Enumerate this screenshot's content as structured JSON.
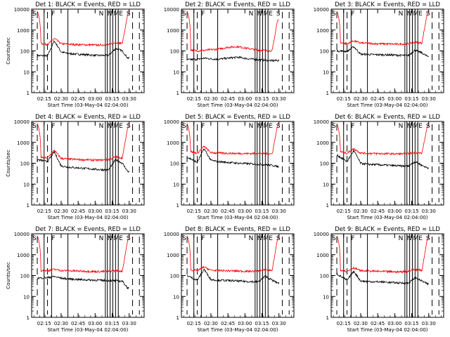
{
  "figure": {
    "ylabel": "Counts/sec",
    "xlabel": "Start Time (03-May-04 02:04:00)",
    "ytick_labels": [
      "1",
      "10",
      "100",
      "1000",
      "10000"
    ],
    "xtick_labels": [
      "02:15",
      "02:30",
      "02:45",
      "03:00",
      "03:15",
      "03:30"
    ],
    "marker_labels": [
      {
        "text": "S",
        "x": 2.067
      },
      {
        "text": "F",
        "x": 2.35
      },
      {
        "text": "N",
        "x": 3.045
      },
      {
        "text": "N",
        "x": 3.17
      },
      {
        "text": "ME",
        "x": 3.26
      },
      {
        "text": "S",
        "x": 3.45
      }
    ],
    "colors": {
      "events": "#000000",
      "lld": "#ff0000",
      "frame": "#000000"
    }
  },
  "chart_data": [
    {
      "type": "line",
      "title": "Det 1: BLACK = Events, RED = LLD",
      "xlim": [
        2.067,
        3.72
      ],
      "ylim": [
        1,
        10000
      ],
      "yscale": "log",
      "x": [
        2.15,
        2.3,
        2.4,
        2.5,
        2.6,
        2.75,
        2.9,
        3.05,
        3.2,
        3.3,
        3.4,
        3.48
      ],
      "series": [
        {
          "name": "Events",
          "color": "#000000",
          "values": [
            60,
            58,
            300,
            90,
            75,
            70,
            65,
            60,
            62,
            130,
            100,
            45
          ]
        },
        {
          "name": "LLD",
          "color": "#ff0000",
          "values": [
            250,
            200,
            400,
            220,
            210,
            200,
            195,
            190,
            200,
            250,
            230,
            6000
          ]
        }
      ]
    },
    {
      "type": "line",
      "title": "Det 2: BLACK = Events, RED = LLD",
      "xlim": [
        2.067,
        3.72
      ],
      "ylim": [
        1,
        10000
      ],
      "yscale": "log",
      "x": [
        2.15,
        2.3,
        2.4,
        2.5,
        2.6,
        2.75,
        2.9,
        3.05,
        3.2,
        3.3,
        3.4,
        3.48
      ],
      "series": [
        {
          "name": "Events",
          "color": "#000000",
          "values": [
            38,
            40,
            45,
            42,
            40,
            45,
            50,
            42,
            38,
            36,
            34,
            35
          ]
        },
        {
          "name": "LLD",
          "color": "#ff0000",
          "values": [
            120,
            100,
            105,
            115,
            120,
            150,
            160,
            130,
            110,
            105,
            100,
            3000
          ]
        }
      ]
    },
    {
      "type": "line",
      "title": "Det 3: BLACK = Events, RED = LLD",
      "xlim": [
        2.067,
        3.72
      ],
      "ylim": [
        1,
        10000
      ],
      "yscale": "log",
      "x": [
        2.15,
        2.3,
        2.4,
        2.5,
        2.6,
        2.75,
        2.9,
        3.05,
        3.2,
        3.3,
        3.4,
        3.48
      ],
      "series": [
        {
          "name": "Events",
          "color": "#000000",
          "values": [
            100,
            95,
            160,
            70,
            68,
            66,
            65,
            62,
            60,
            110,
            80,
            55
          ]
        },
        {
          "name": "LLD",
          "color": "#ff0000",
          "values": [
            260,
            220,
            300,
            240,
            230,
            220,
            215,
            210,
            220,
            260,
            240,
            6500
          ]
        }
      ]
    },
    {
      "type": "line",
      "title": "Det 4: BLACK = Events, RED = LLD",
      "xlim": [
        2.067,
        3.72
      ],
      "ylim": [
        1,
        10000
      ],
      "yscale": "log",
      "x": [
        2.15,
        2.3,
        2.4,
        2.5,
        2.6,
        2.75,
        2.9,
        3.05,
        3.2,
        3.3,
        3.4,
        3.48
      ],
      "series": [
        {
          "name": "Events",
          "color": "#000000",
          "values": [
            150,
            120,
            350,
            75,
            65,
            60,
            55,
            50,
            48,
            150,
            100,
            40
          ]
        },
        {
          "name": "LLD",
          "color": "#ff0000",
          "values": [
            200,
            180,
            420,
            170,
            160,
            150,
            145,
            140,
            150,
            200,
            180,
            5500
          ]
        }
      ]
    },
    {
      "type": "line",
      "title": "Det 5: BLACK = Events, RED = LLD",
      "xlim": [
        2.067,
        3.72
      ],
      "ylim": [
        1,
        10000
      ],
      "yscale": "log",
      "x": [
        2.15,
        2.3,
        2.4,
        2.5,
        2.6,
        2.75,
        2.9,
        3.05,
        3.2,
        3.3,
        3.4,
        3.48
      ],
      "series": [
        {
          "name": "Events",
          "color": "#000000",
          "values": [
            200,
            110,
            500,
            140,
            120,
            110,
            100,
            95,
            90,
            85,
            80,
            70
          ]
        },
        {
          "name": "LLD",
          "color": "#ff0000",
          "values": [
            400,
            300,
            650,
            320,
            310,
            300,
            295,
            290,
            300,
            290,
            280,
            6500
          ]
        }
      ]
    },
    {
      "type": "line",
      "title": "Det 6: BLACK = Events, RED = LLD",
      "xlim": [
        2.067,
        3.72
      ],
      "ylim": [
        1,
        10000
      ],
      "yscale": "log",
      "x": [
        2.15,
        2.3,
        2.4,
        2.5,
        2.6,
        2.75,
        2.9,
        3.05,
        3.2,
        3.3,
        3.4,
        3.48
      ],
      "series": [
        {
          "name": "Events",
          "color": "#000000",
          "values": [
            250,
            120,
            400,
            100,
            90,
            85,
            80,
            75,
            72,
            120,
            80,
            60
          ]
        },
        {
          "name": "LLD",
          "color": "#ff0000",
          "values": [
            400,
            300,
            500,
            310,
            300,
            290,
            285,
            280,
            290,
            320,
            300,
            6000
          ]
        }
      ]
    },
    {
      "type": "line",
      "title": "Det 7: BLACK = Events, RED = LLD",
      "xlim": [
        2.067,
        3.72
      ],
      "ylim": [
        1,
        10000
      ],
      "yscale": "log",
      "x": [
        2.15,
        2.3,
        2.4,
        2.5,
        2.6,
        2.75,
        2.9,
        3.05,
        3.2,
        3.3,
        3.4,
        3.48
      ],
      "series": [
        {
          "name": "Events",
          "color": "#000000",
          "values": [
            75,
            80,
            90,
            75,
            70,
            65,
            62,
            60,
            58,
            56,
            54,
            25
          ]
        },
        {
          "name": "LLD",
          "color": "#ff0000",
          "values": [
            180,
            170,
            200,
            175,
            170,
            165,
            160,
            155,
            160,
            170,
            165,
            5500
          ]
        }
      ]
    },
    {
      "type": "line",
      "title": "Det 8: BLACK = Events, RED = LLD",
      "xlim": [
        2.067,
        3.72
      ],
      "ylim": [
        1,
        10000
      ],
      "yscale": "log",
      "x": [
        2.15,
        2.3,
        2.4,
        2.5,
        2.6,
        2.75,
        2.9,
        3.05,
        3.2,
        3.3,
        3.4,
        3.48
      ],
      "series": [
        {
          "name": "Events",
          "color": "#000000",
          "values": [
            100,
            60,
            200,
            65,
            60,
            58,
            55,
            52,
            50,
            95,
            60,
            45
          ]
        },
        {
          "name": "LLD",
          "color": "#ff0000",
          "values": [
            200,
            170,
            260,
            180,
            175,
            170,
            165,
            160,
            165,
            190,
            175,
            6000
          ]
        }
      ]
    },
    {
      "type": "line",
      "title": "Det 9: BLACK = Events, RED = LLD",
      "xlim": [
        2.067,
        3.72
      ],
      "ylim": [
        1,
        10000
      ],
      "yscale": "log",
      "x": [
        2.15,
        2.3,
        2.4,
        2.5,
        2.6,
        2.75,
        2.9,
        3.05,
        3.2,
        3.3,
        3.4,
        3.48
      ],
      "series": [
        {
          "name": "Events",
          "color": "#000000",
          "values": [
            120,
            60,
            160,
            55,
            52,
            50,
            48,
            45,
            43,
            80,
            55,
            40
          ]
        },
        {
          "name": "LLD",
          "color": "#ff0000",
          "values": [
            200,
            160,
            240,
            170,
            165,
            160,
            155,
            150,
            160,
            200,
            175,
            6000
          ]
        }
      ]
    }
  ]
}
